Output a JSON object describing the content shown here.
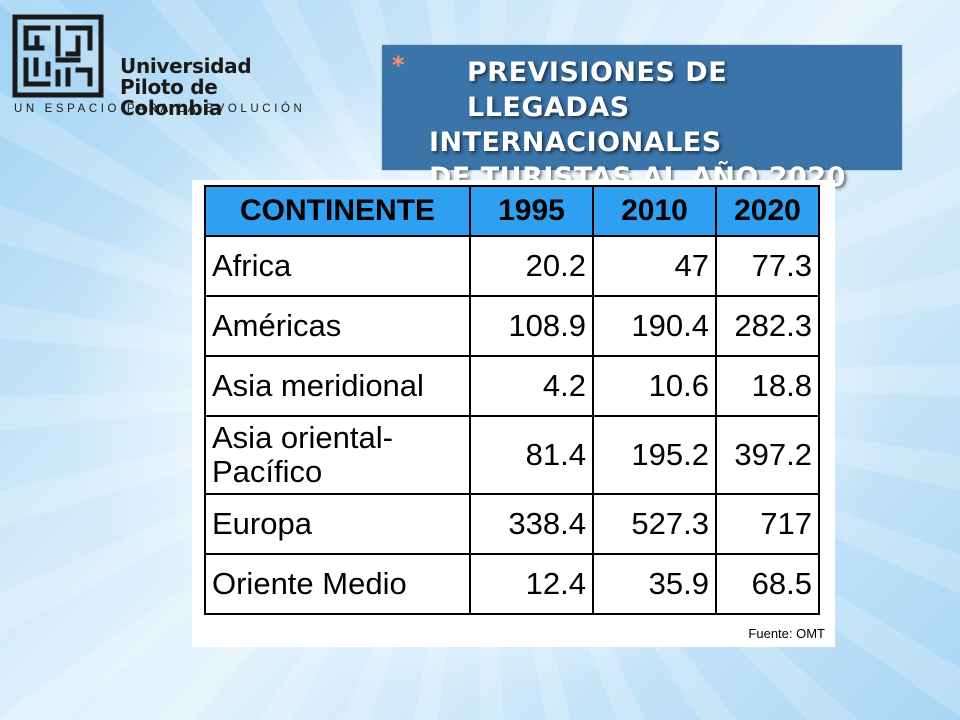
{
  "logo": {
    "name_line1": "Universidad",
    "name_line2": "Piloto de Colombia",
    "tagline": "UN ESPACIO PARA LA EVOLUCIÓN"
  },
  "title": {
    "bullet": "*",
    "line1": "PREVISIONES DE LLEGADAS",
    "line2": "INTERNACIONALES",
    "line3": "DE TURISTAS AL AÑO 2020"
  },
  "chart_data": {
    "type": "table",
    "columns": [
      "CONTINENTE",
      "1995",
      "2010",
      "2020"
    ],
    "rows": [
      {
        "continent": "Africa",
        "v1995": "20.2",
        "v2010": "47",
        "v2020": "77.3"
      },
      {
        "continent": "Américas",
        "v1995": "108.9",
        "v2010": "190.4",
        "v2020": "282.3"
      },
      {
        "continent": "Asia meridional",
        "v1995": "4.2",
        "v2010": "10.6",
        "v2020": "18.8"
      },
      {
        "continent": "Asia oriental-\nPacífico",
        "v1995": "81.4",
        "v2010": "195.2",
        "v2020": "397.2"
      },
      {
        "continent": "Europa",
        "v1995": "338.4",
        "v2010": "527.3",
        "v2020": "717"
      },
      {
        "continent": "Oriente Medio",
        "v1995": "12.4",
        "v2010": "35.9",
        "v2020": "68.5"
      }
    ],
    "source": "Fuente: OMT"
  },
  "colors": {
    "title_bg": "#3b74a8",
    "header_bg": "#2f9ff2",
    "bullet": "#ff8f6e"
  }
}
